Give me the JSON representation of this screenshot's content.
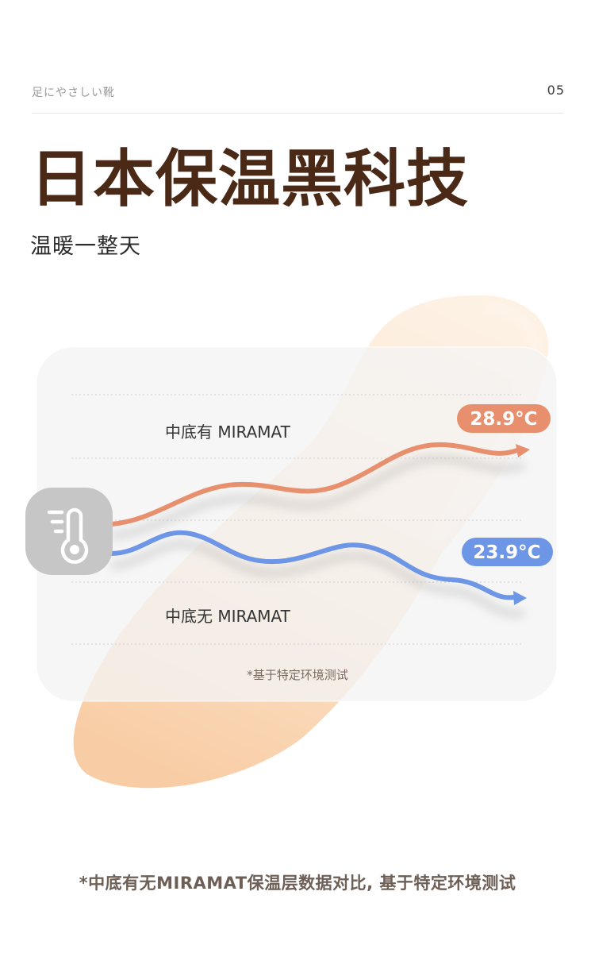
{
  "header": {
    "brand": "足にやさしい靴",
    "page_number": "05"
  },
  "hero": {
    "title": "日本保温黑科技",
    "subtitle": "温暖一整天"
  },
  "comparison": {
    "with_label": "中底有 MIRAMAT",
    "with_temp": "28.9°C",
    "with_color": "#e8906e",
    "without_label": "中底无 MIRAMAT",
    "without_temp": "23.9°C",
    "without_color": "#6e96e6",
    "note": "*基于特定环境测试",
    "icon": "thermometer-icon"
  },
  "footer": {
    "note": "*中底有无MIRAMAT保温层数据对比, 基于特定环境测试"
  }
}
